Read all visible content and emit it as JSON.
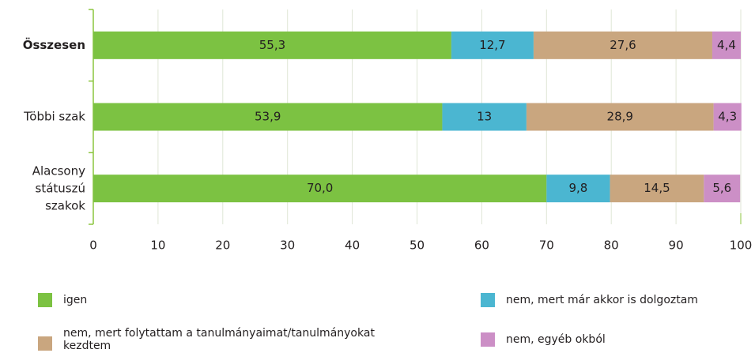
{
  "chart_data": {
    "type": "stacked_barh",
    "categories": [
      "Összesen",
      "Többi szak",
      "Alacsony státuszú szakok"
    ],
    "series": [
      {
        "name": "igen",
        "color": "#7cc242",
        "values": [
          55.3,
          53.9,
          70.0
        ],
        "value_labels": [
          "55,3",
          "53,9",
          "70,0"
        ]
      },
      {
        "name": "nem, mert már akkor is dolgoztam",
        "color": "#4bb6d1",
        "values": [
          12.7,
          13,
          9.8
        ],
        "value_labels": [
          "12,7",
          "13",
          "9,8"
        ]
      },
      {
        "name": "nem, mert folytattam a tanulmányaimat/tanulmányokat kezdtem",
        "color": "#c9a67f",
        "values": [
          27.6,
          28.9,
          14.5
        ],
        "value_labels": [
          "27,6",
          "28,9",
          "14,5"
        ]
      },
      {
        "name": "nem, egyéb okból",
        "color": "#cc8fc6",
        "values": [
          4.4,
          4.3,
          5.6
        ],
        "value_labels": [
          "4,4",
          "4,3",
          "5,6"
        ]
      }
    ],
    "xlim": [
      0,
      100
    ],
    "xticks": [
      0,
      10,
      20,
      30,
      40,
      50,
      60,
      70,
      80,
      90,
      100
    ],
    "grid": true
  }
}
